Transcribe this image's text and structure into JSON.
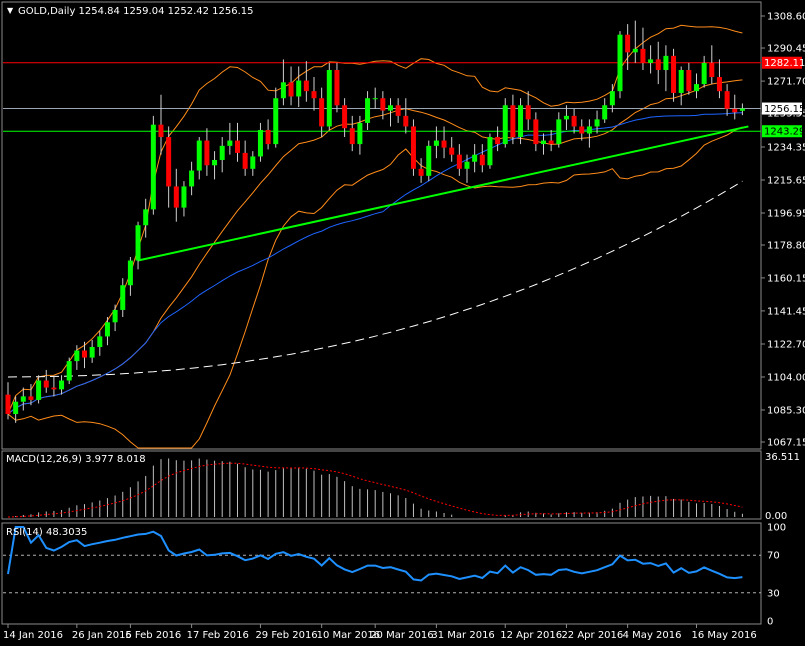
{
  "header": {
    "symbol_menu_glyph": "▼",
    "title": "GOLD,Daily  1254.84 1259.04 1252.42 1256.15"
  },
  "colors": {
    "background": "#000000",
    "frame": "#8a8a8a",
    "bull": "#00ff00",
    "bear": "#ff0000",
    "bollinger": "#ff8c1a",
    "ma_blue": "#1e64ff",
    "ma_dashed": "#ffffff",
    "trendline": "#00ff00",
    "resistance": "#ff0000",
    "support": "#00ff00",
    "current": "#9aa6b4",
    "macd_hist": "#c0c0c0",
    "macd_signal": "#ff0000",
    "rsi": "#1e90ff",
    "label_text": "#ffffff"
  },
  "price_axis": {
    "ticks": [
      "1308.60",
      "1290.45",
      "1271.70",
      "1253.55",
      "1234.35",
      "1215.65",
      "1196.95",
      "1178.80",
      "1160.15",
      "1141.45",
      "1122.70",
      "1104.00",
      "1085.30",
      "1067.15"
    ],
    "tag_resistance": "1282.11",
    "tag_current": "1256.15",
    "tag_support": "1243.29"
  },
  "macd": {
    "label": "MACD(12,26,9) 3.977 8.018",
    "axis_top": "36.511",
    "axis_bottom": "0.00"
  },
  "rsi": {
    "label": "RSI(14) 48.3035",
    "ticks": [
      "100",
      "70",
      "30",
      "0"
    ]
  },
  "time_axis": {
    "labels": [
      "14 Jan 2016",
      "26 Jan 2016",
      "5 Feb 2016",
      "17 Feb 2016",
      "29 Feb 2016",
      "10 Mar 2016",
      "20 Mar 2016",
      "31 Mar 2016",
      "12 Apr 2016",
      "22 Apr 2016",
      "4 May 2016",
      "16 May 2016"
    ]
  },
  "chart_data": {
    "type": "candlestick",
    "title": "GOLD,Daily  1254.84 1259.04 1252.42 1256.15",
    "y_range": [
      1067.15,
      1308.6
    ],
    "candles": [
      {
        "o": 1094,
        "h": 1101,
        "l": 1080,
        "c": 1083
      },
      {
        "o": 1083,
        "h": 1093,
        "l": 1078,
        "c": 1090
      },
      {
        "o": 1090,
        "h": 1098,
        "l": 1085,
        "c": 1093
      },
      {
        "o": 1093,
        "h": 1100,
        "l": 1088,
        "c": 1091
      },
      {
        "o": 1091,
        "h": 1105,
        "l": 1089,
        "c": 1102
      },
      {
        "o": 1102,
        "h": 1108,
        "l": 1095,
        "c": 1098
      },
      {
        "o": 1098,
        "h": 1104,
        "l": 1093,
        "c": 1097
      },
      {
        "o": 1097,
        "h": 1105,
        "l": 1094,
        "c": 1102
      },
      {
        "o": 1102,
        "h": 1115,
        "l": 1100,
        "c": 1113
      },
      {
        "o": 1113,
        "h": 1122,
        "l": 1108,
        "c": 1119
      },
      {
        "o": 1119,
        "h": 1124,
        "l": 1109,
        "c": 1115
      },
      {
        "o": 1115,
        "h": 1125,
        "l": 1112,
        "c": 1121
      },
      {
        "o": 1121,
        "h": 1130,
        "l": 1116,
        "c": 1127
      },
      {
        "o": 1127,
        "h": 1138,
        "l": 1122,
        "c": 1135
      },
      {
        "o": 1135,
        "h": 1145,
        "l": 1130,
        "c": 1142
      },
      {
        "o": 1142,
        "h": 1160,
        "l": 1138,
        "c": 1156
      },
      {
        "o": 1156,
        "h": 1172,
        "l": 1150,
        "c": 1170
      },
      {
        "o": 1170,
        "h": 1192,
        "l": 1165,
        "c": 1190
      },
      {
        "o": 1190,
        "h": 1205,
        "l": 1183,
        "c": 1199
      },
      {
        "o": 1199,
        "h": 1252,
        "l": 1196,
        "c": 1247
      },
      {
        "o": 1247,
        "h": 1264,
        "l": 1230,
        "c": 1240
      },
      {
        "o": 1240,
        "h": 1246,
        "l": 1200,
        "c": 1212
      },
      {
        "o": 1212,
        "h": 1222,
        "l": 1192,
        "c": 1200
      },
      {
        "o": 1200,
        "h": 1215,
        "l": 1195,
        "c": 1212
      },
      {
        "o": 1212,
        "h": 1226,
        "l": 1207,
        "c": 1221
      },
      {
        "o": 1221,
        "h": 1240,
        "l": 1216,
        "c": 1238
      },
      {
        "o": 1238,
        "h": 1245,
        "l": 1218,
        "c": 1224
      },
      {
        "o": 1224,
        "h": 1232,
        "l": 1216,
        "c": 1227
      },
      {
        "o": 1227,
        "h": 1240,
        "l": 1220,
        "c": 1235
      },
      {
        "o": 1235,
        "h": 1248,
        "l": 1230,
        "c": 1238
      },
      {
        "o": 1238,
        "h": 1248,
        "l": 1226,
        "c": 1231
      },
      {
        "o": 1231,
        "h": 1238,
        "l": 1218,
        "c": 1222
      },
      {
        "o": 1222,
        "h": 1232,
        "l": 1218,
        "c": 1229
      },
      {
        "o": 1229,
        "h": 1248,
        "l": 1226,
        "c": 1244
      },
      {
        "o": 1244,
        "h": 1250,
        "l": 1233,
        "c": 1236
      },
      {
        "o": 1236,
        "h": 1268,
        "l": 1234,
        "c": 1262
      },
      {
        "o": 1262,
        "h": 1284,
        "l": 1258,
        "c": 1271
      },
      {
        "o": 1271,
        "h": 1280,
        "l": 1258,
        "c": 1263
      },
      {
        "o": 1263,
        "h": 1280,
        "l": 1257,
        "c": 1272
      },
      {
        "o": 1272,
        "h": 1283,
        "l": 1260,
        "c": 1266
      },
      {
        "o": 1266,
        "h": 1274,
        "l": 1255,
        "c": 1262
      },
      {
        "o": 1262,
        "h": 1268,
        "l": 1240,
        "c": 1246
      },
      {
        "o": 1246,
        "h": 1282,
        "l": 1244,
        "c": 1278
      },
      {
        "o": 1278,
        "h": 1282,
        "l": 1254,
        "c": 1258
      },
      {
        "o": 1258,
        "h": 1262,
        "l": 1240,
        "c": 1245
      },
      {
        "o": 1245,
        "h": 1252,
        "l": 1232,
        "c": 1236
      },
      {
        "o": 1236,
        "h": 1252,
        "l": 1230,
        "c": 1248
      },
      {
        "o": 1248,
        "h": 1266,
        "l": 1244,
        "c": 1262
      },
      {
        "o": 1262,
        "h": 1268,
        "l": 1256,
        "c": 1262
      },
      {
        "o": 1262,
        "h": 1266,
        "l": 1250,
        "c": 1255
      },
      {
        "o": 1255,
        "h": 1262,
        "l": 1246,
        "c": 1258
      },
      {
        "o": 1258,
        "h": 1262,
        "l": 1248,
        "c": 1252
      },
      {
        "o": 1252,
        "h": 1262,
        "l": 1242,
        "c": 1246
      },
      {
        "o": 1246,
        "h": 1250,
        "l": 1218,
        "c": 1222
      },
      {
        "o": 1222,
        "h": 1228,
        "l": 1214,
        "c": 1218
      },
      {
        "o": 1218,
        "h": 1238,
        "l": 1215,
        "c": 1235
      },
      {
        "o": 1235,
        "h": 1246,
        "l": 1228,
        "c": 1238
      },
      {
        "o": 1238,
        "h": 1246,
        "l": 1228,
        "c": 1234
      },
      {
        "o": 1234,
        "h": 1240,
        "l": 1226,
        "c": 1230
      },
      {
        "o": 1230,
        "h": 1236,
        "l": 1218,
        "c": 1222
      },
      {
        "o": 1222,
        "h": 1230,
        "l": 1214,
        "c": 1226
      },
      {
        "o": 1226,
        "h": 1236,
        "l": 1220,
        "c": 1230
      },
      {
        "o": 1230,
        "h": 1236,
        "l": 1220,
        "c": 1224
      },
      {
        "o": 1224,
        "h": 1242,
        "l": 1222,
        "c": 1240
      },
      {
        "o": 1240,
        "h": 1246,
        "l": 1232,
        "c": 1236
      },
      {
        "o": 1236,
        "h": 1262,
        "l": 1234,
        "c": 1258
      },
      {
        "o": 1258,
        "h": 1264,
        "l": 1236,
        "c": 1240
      },
      {
        "o": 1240,
        "h": 1262,
        "l": 1236,
        "c": 1258
      },
      {
        "o": 1258,
        "h": 1266,
        "l": 1244,
        "c": 1250
      },
      {
        "o": 1250,
        "h": 1254,
        "l": 1232,
        "c": 1236
      },
      {
        "o": 1236,
        "h": 1242,
        "l": 1230,
        "c": 1238
      },
      {
        "o": 1238,
        "h": 1244,
        "l": 1232,
        "c": 1236
      },
      {
        "o": 1236,
        "h": 1254,
        "l": 1234,
        "c": 1250
      },
      {
        "o": 1250,
        "h": 1258,
        "l": 1244,
        "c": 1252
      },
      {
        "o": 1252,
        "h": 1256,
        "l": 1242,
        "c": 1246
      },
      {
        "o": 1246,
        "h": 1250,
        "l": 1238,
        "c": 1242
      },
      {
        "o": 1242,
        "h": 1250,
        "l": 1234,
        "c": 1246
      },
      {
        "o": 1246,
        "h": 1255,
        "l": 1242,
        "c": 1250
      },
      {
        "o": 1250,
        "h": 1262,
        "l": 1248,
        "c": 1258
      },
      {
        "o": 1258,
        "h": 1270,
        "l": 1254,
        "c": 1266
      },
      {
        "o": 1266,
        "h": 1300,
        "l": 1262,
        "c": 1298
      },
      {
        "o": 1298,
        "h": 1304,
        "l": 1278,
        "c": 1288
      },
      {
        "o": 1288,
        "h": 1306,
        "l": 1282,
        "c": 1290
      },
      {
        "o": 1290,
        "h": 1302,
        "l": 1278,
        "c": 1282
      },
      {
        "o": 1282,
        "h": 1292,
        "l": 1276,
        "c": 1284
      },
      {
        "o": 1284,
        "h": 1294,
        "l": 1270,
        "c": 1278
      },
      {
        "o": 1278,
        "h": 1292,
        "l": 1266,
        "c": 1286
      },
      {
        "o": 1286,
        "h": 1290,
        "l": 1260,
        "c": 1265
      },
      {
        "o": 1265,
        "h": 1280,
        "l": 1258,
        "c": 1278
      },
      {
        "o": 1278,
        "h": 1282,
        "l": 1264,
        "c": 1266
      },
      {
        "o": 1266,
        "h": 1276,
        "l": 1262,
        "c": 1270
      },
      {
        "o": 1270,
        "h": 1286,
        "l": 1268,
        "c": 1282
      },
      {
        "o": 1282,
        "h": 1292,
        "l": 1270,
        "c": 1274
      },
      {
        "o": 1274,
        "h": 1284,
        "l": 1262,
        "c": 1266
      },
      {
        "o": 1266,
        "h": 1270,
        "l": 1252,
        "c": 1256
      },
      {
        "o": 1256,
        "h": 1264,
        "l": 1250,
        "c": 1254
      },
      {
        "o": 1254.84,
        "h": 1259.04,
        "l": 1252.42,
        "c": 1256.15
      }
    ],
    "levels": {
      "resistance": 1282.11,
      "current": 1256.15,
      "support": 1243.29
    },
    "trendline": {
      "start": [
        17,
        1170
      ],
      "end": [
        96,
        1246
      ]
    },
    "macd_range": [
      0,
      36.511
    ],
    "rsi_range": [
      0,
      100
    ],
    "rsi_levels": [
      70,
      30
    ]
  }
}
